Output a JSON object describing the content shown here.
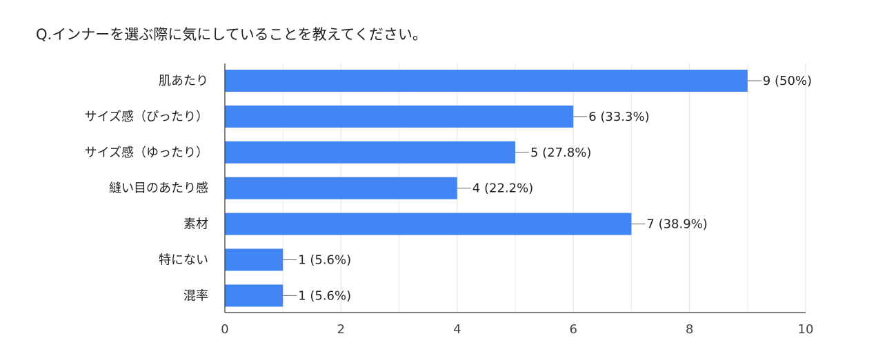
{
  "chart_data": {
    "type": "bar",
    "orientation": "horizontal",
    "title": "Q.インナーを選ぶ際に気にしていることを教えてください。",
    "categories": [
      "肌あたり",
      "サイズ感（ぴったり）",
      "サイズ感（ゆったり）",
      "縫い目のあたり感",
      "素材",
      "特にない",
      "混率"
    ],
    "values": [
      9,
      6,
      5,
      4,
      7,
      1,
      1
    ],
    "data_labels": [
      "9 (50%)",
      "6 (33.3%)",
      "5 (27.8%)",
      "4 (22.2%)",
      "7 (38.9%)",
      "1 (5.6%)",
      "1 (5.6%)"
    ],
    "xlim": [
      0,
      10
    ],
    "xticks": [
      0,
      2,
      4,
      6,
      8,
      10
    ],
    "xlabel": "",
    "ylabel": "",
    "grid": true,
    "bar_color": "#4285f4",
    "grid_color": "#e6e6e6",
    "axis_color": "#333333"
  }
}
